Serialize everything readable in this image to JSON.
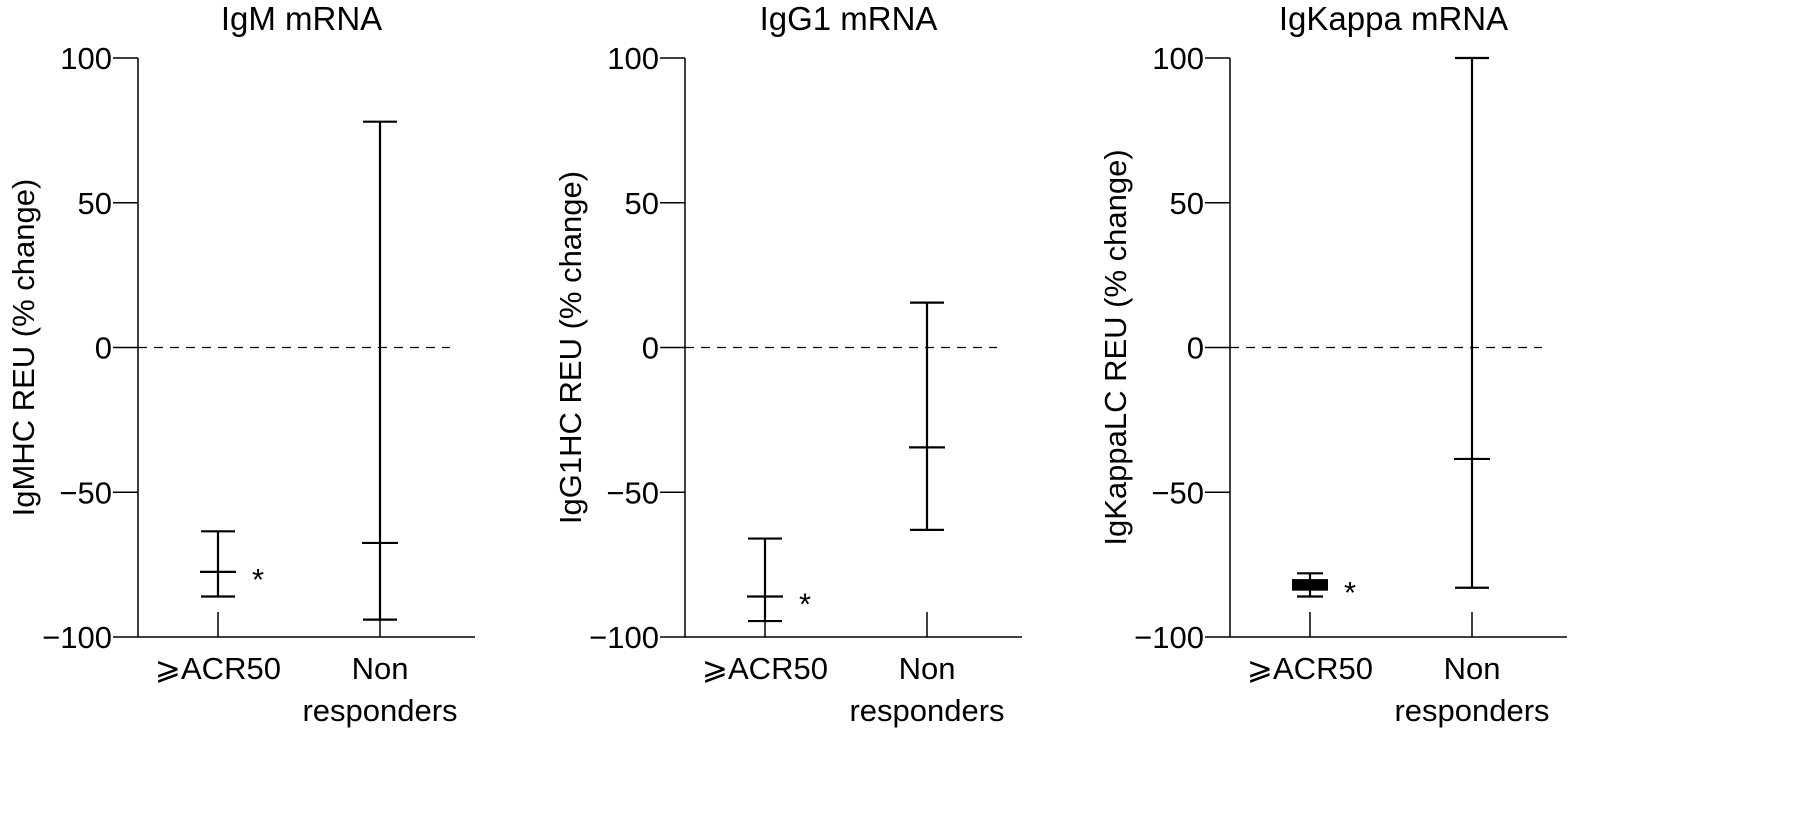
{
  "chart_data": [
    {
      "type": "errorbar",
      "title": "IgM mRNA",
      "y_label": "IgMHC REU (% change)",
      "categories": [
        "⩾ACR50",
        "Non responders"
      ],
      "values": [
        -77.5,
        -67.5
      ],
      "lower": [
        -86,
        -94
      ],
      "upper": [
        -63.5,
        78
      ],
      "significance": [
        "*",
        null
      ],
      "reference_line": 0,
      "ylim": [
        -100,
        100
      ],
      "yticks": [
        {
          "value": -100,
          "label": "−100"
        },
        {
          "value": -50,
          "label": "−50"
        },
        0,
        50,
        100
      ],
      "color": "#000000"
    },
    {
      "type": "errorbar",
      "title": "IgG1 mRNA",
      "y_label": "IgG1HC REU (% change)",
      "categories": [
        "⩾ACR50",
        "Non responders"
      ],
      "values": [
        -86,
        -34.5
      ],
      "lower": [
        -94.5,
        -63
      ],
      "upper": [
        -66,
        15.5
      ],
      "significance": [
        "*",
        null
      ],
      "reference_line": 0,
      "ylim": [
        -100,
        100
      ],
      "yticks": [
        {
          "value": -100,
          "label": "−100"
        },
        {
          "value": -50,
          "label": "−50"
        },
        0,
        50,
        100
      ],
      "color": "#000000"
    },
    {
      "type": "errorbar",
      "title": "IgKappa mRNA",
      "y_label": "IgKappaLC REU (% change)",
      "categories": [
        "⩾ACR50",
        "Non responders"
      ],
      "values": [
        -82,
        -38.5
      ],
      "lower": [
        -86,
        -83
      ],
      "upper": [
        -78,
        100
      ],
      "box_low": [
        -84,
        null
      ],
      "box_high": [
        -80,
        null
      ],
      "significance": [
        "*",
        null
      ],
      "reference_line": 0,
      "ylim": [
        -100,
        100
      ],
      "yticks": [
        {
          "value": -100,
          "label": "−100"
        },
        {
          "value": -50,
          "label": "−50"
        },
        0,
        50,
        100
      ],
      "color": "#000000"
    }
  ]
}
